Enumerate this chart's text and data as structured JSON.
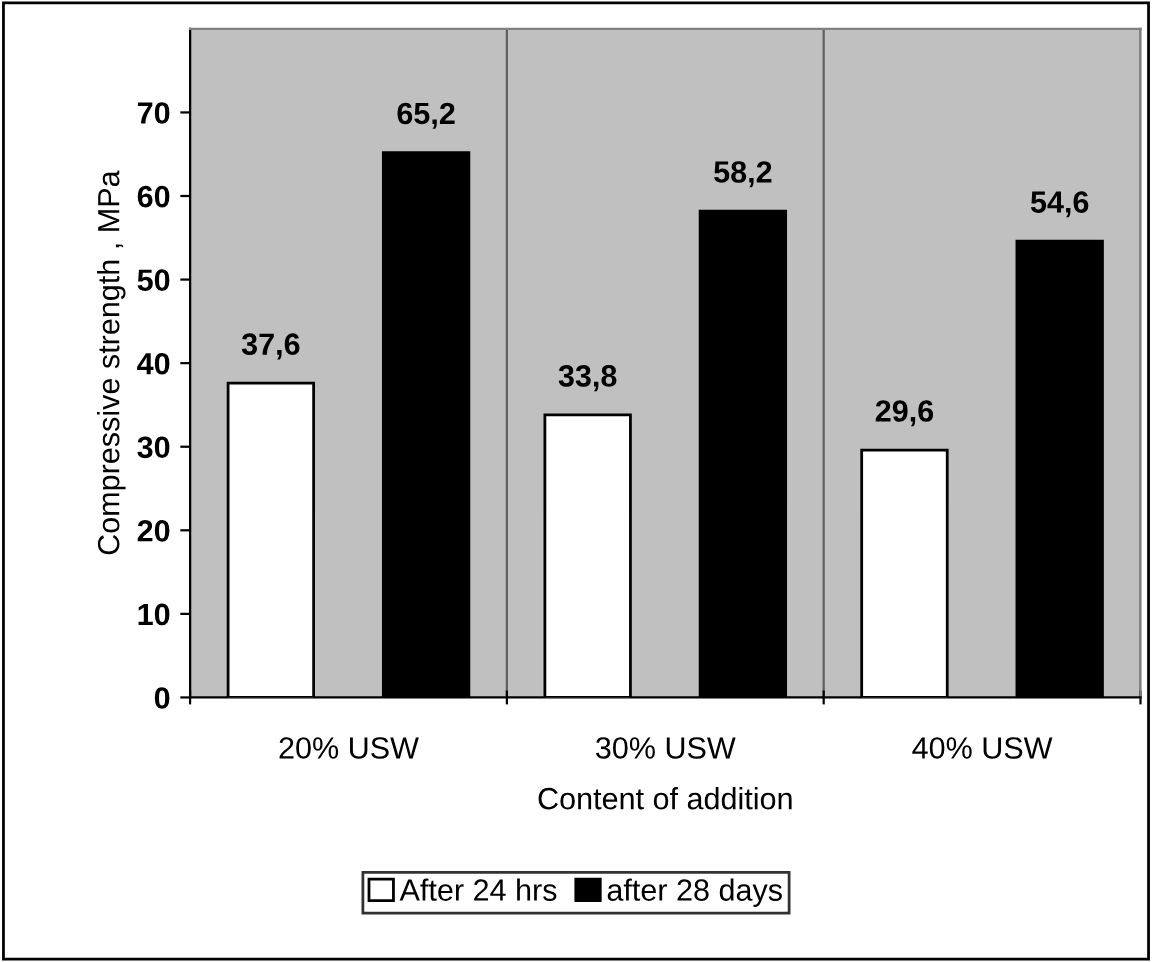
{
  "chart_data": {
    "type": "bar",
    "xlabel": "Content of addition",
    "ylabel": "Compressive strength , MPa",
    "categories": [
      "20% USW",
      "30% USW",
      "40% USW"
    ],
    "series": [
      {
        "name": "After 24 hrs",
        "color": "#ffffff",
        "values": [
          37.6,
          33.8,
          29.6
        ],
        "value_labels": [
          "37,6",
          "33,8",
          "29,6"
        ]
      },
      {
        "name": "after 28 days",
        "color": "#000000",
        "values": [
          65.2,
          58.2,
          54.6
        ],
        "value_labels": [
          "65,2",
          "58,2",
          "54,6"
        ]
      }
    ],
    "ylim": [
      0,
      80
    ],
    "yticks": [
      0,
      10,
      20,
      30,
      40,
      50,
      60,
      70
    ],
    "grid": "x",
    "legend": "bottom"
  }
}
